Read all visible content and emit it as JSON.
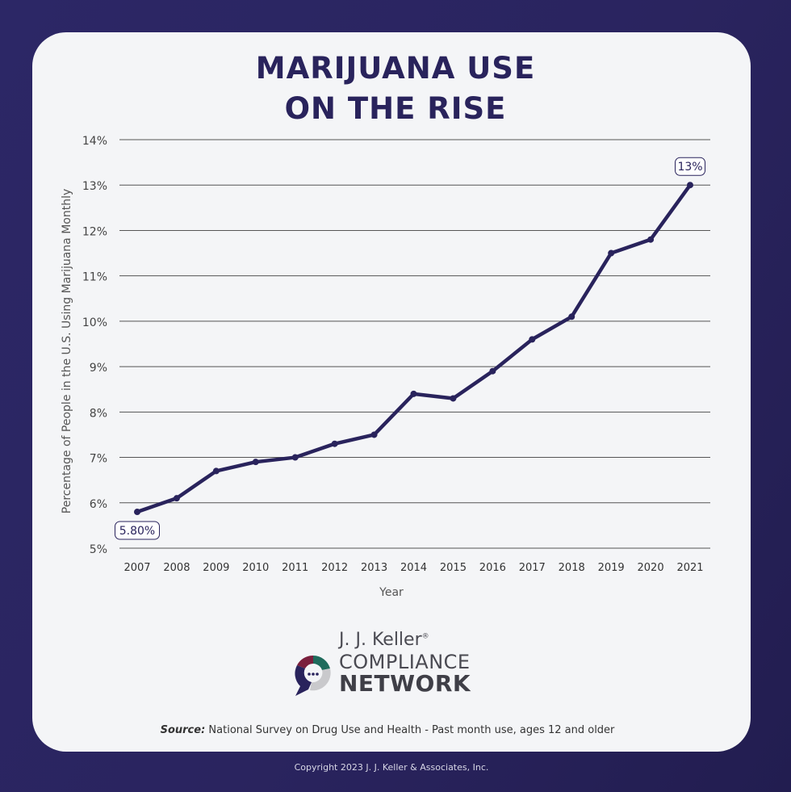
{
  "title_line1": "MARIJUANA USE",
  "title_line2": "ON THE RISE",
  "logo": {
    "line1": "J. J. Keller",
    "reg": "®",
    "line2": "COMPLIANCE",
    "line3": "NETWORK"
  },
  "source_label": "Source:",
  "source_text": " National Survey on Drug Use and Health - Past month use, ages 12 and older",
  "copyright": "Copyright 2023 J. J. Keller & Associates, Inc.",
  "colors": {
    "navy": "#29235c",
    "card": "#f4f5f7",
    "grid": "#555555"
  },
  "chart_data": {
    "type": "line",
    "title": "MARIJUANA USE ON THE RISE",
    "xlabel": "Year",
    "ylabel": "Percentage of People in the U.S. Using Marijuana Monthly",
    "categories": [
      "2007",
      "2008",
      "2009",
      "2010",
      "2011",
      "2012",
      "2013",
      "2014",
      "2015",
      "2016",
      "2017",
      "2018",
      "2019",
      "2020",
      "2021"
    ],
    "series": [
      {
        "values": [
          5.8,
          6.1,
          6.7,
          6.9,
          7.0,
          7.3,
          7.5,
          8.4,
          8.3,
          8.9,
          9.6,
          10.1,
          11.5,
          11.8,
          13.0
        ]
      }
    ],
    "ylim": [
      5,
      14
    ],
    "yticks": [
      "5%",
      "6%",
      "7%",
      "8%",
      "9%",
      "10%",
      "11%",
      "12%",
      "13%",
      "14%"
    ],
    "annotations": [
      {
        "index": 0,
        "text": "5.80%",
        "position": "below"
      },
      {
        "index": 14,
        "text": "13%",
        "position": "above"
      }
    ],
    "grid": true
  }
}
